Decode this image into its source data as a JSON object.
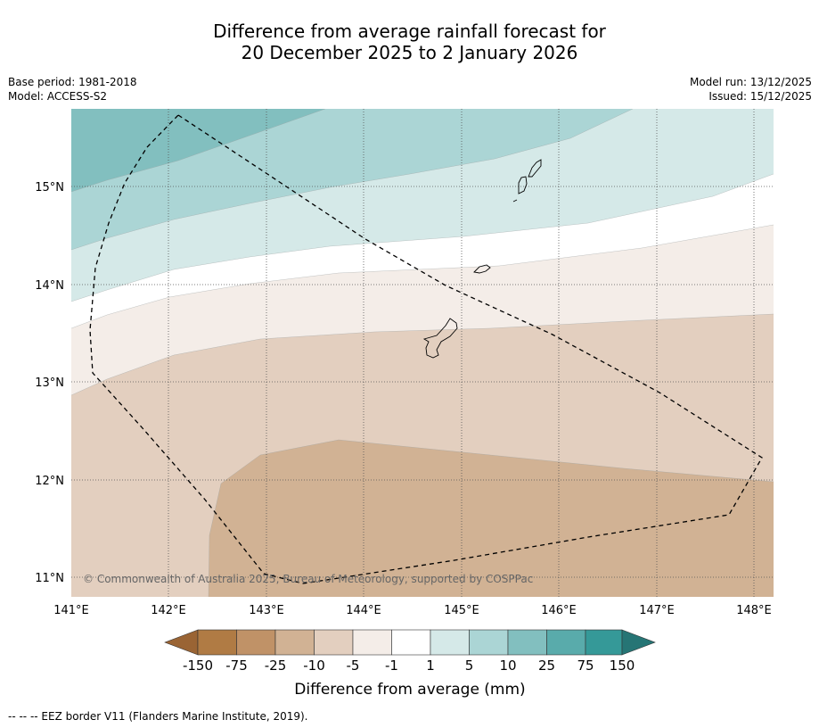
{
  "title": {
    "line1": "Difference from average rainfall forecast for",
    "line2": "20 December 2025 to 2 January 2026"
  },
  "meta": {
    "base_period": "Base period: 1981-2018",
    "model": "Model: ACCESS-S2",
    "model_run": "Model run: 13/12/2025",
    "issued": "Issued: 15/12/2025"
  },
  "map": {
    "lat_labels": [
      "15°N",
      "14°N",
      "13°N",
      "12°N",
      "11°N"
    ],
    "lon_labels": [
      "141°E",
      "142°E",
      "143°E",
      "144°E",
      "145°E",
      "146°E",
      "147°E",
      "148°E"
    ],
    "copyright": "© Commonwealth of Australia 2025, Bureau of Meteorology, supported by COSPPac",
    "colors": {
      "c_lt_neg150": "#9a6434",
      "c_neg150_neg75": "#b07b44",
      "c_neg75_neg25": "#c09267",
      "c_neg25_neg10": "#d1b294",
      "c_neg10_neg5": "#e3cfbf",
      "c_neg5_neg1": "#f4ede8",
      "c_neg1_1": "#ffffff",
      "c_1_5": "#d5e9e8",
      "c_5_10": "#abd5d5",
      "c_10_25": "#82bfbf",
      "c_25_75": "#59abab",
      "c_75_150": "#359998",
      "c_gt150": "#267575"
    }
  },
  "legend": {
    "ticks": [
      "-150",
      "-75",
      "-25",
      "-10",
      "-5",
      "-1",
      "1",
      "5",
      "10",
      "25",
      "75",
      "150"
    ],
    "label": "Difference from average (mm)"
  },
  "footnote": "--  --  -- EEZ border V11 (Flanders Marine Institute, 2019)."
}
